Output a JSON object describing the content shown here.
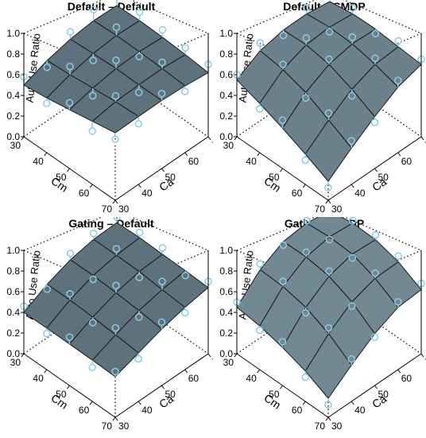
{
  "chart_data": [
    {
      "type": "surface3d",
      "title": "Default – Default",
      "xlabel": "Cm",
      "ylabel": "Ca",
      "zlabel": "Auto Use Ratio",
      "x": [
        30,
        40,
        50,
        60,
        70
      ],
      "y": [
        30,
        40,
        50,
        60,
        70
      ],
      "xlim": [
        30,
        70
      ],
      "ylim": [
        30,
        70
      ],
      "zlim": [
        0,
        1
      ],
      "xticks": [
        30,
        40,
        50,
        60,
        70
      ],
      "yticks": [
        30,
        40,
        50,
        60,
        70
      ],
      "zticks": [
        {
          "value": 0,
          "label": "0.0"
        },
        0.2,
        0.4,
        0.6,
        0.8,
        {
          "value": 1,
          "label": "1.0"
        }
      ],
      "surface_color": "#5d727c",
      "point_color": "#8ccbe6",
      "z": [
        [
          0.5,
          0.62,
          0.72,
          0.8,
          0.85
        ],
        [
          0.5,
          0.6,
          0.69,
          0.76,
          0.8
        ],
        [
          0.51,
          0.59,
          0.66,
          0.71,
          0.74
        ],
        [
          0.52,
          0.58,
          0.62,
          0.66,
          0.68
        ],
        [
          0.53,
          0.56,
          0.59,
          0.61,
          0.62
        ]
      ],
      "points": [
        [
          0.58,
          0.55,
          0.8,
          0.93,
          0.97
        ],
        [
          0.45,
          0.68,
          0.62,
          0.85,
          0.9
        ],
        [
          0.57,
          0.52,
          0.74,
          0.66,
          0.82
        ],
        [
          0.44,
          0.63,
          0.55,
          0.72,
          0.75
        ],
        [
          0.48,
          0.5,
          0.65,
          0.56,
          0.7
        ]
      ]
    },
    {
      "type": "surface3d",
      "title": "Default – SMDP",
      "xlabel": "Cm",
      "ylabel": "Ca",
      "zlabel": "Auto Use Ratio",
      "x": [
        30,
        40,
        50,
        60,
        70
      ],
      "y": [
        30,
        40,
        50,
        60,
        70
      ],
      "xlim": [
        30,
        70
      ],
      "ylim": [
        30,
        70
      ],
      "zlim": [
        0,
        1
      ],
      "xticks": [
        30,
        40,
        50,
        60,
        70
      ],
      "yticks": [
        30,
        40,
        50,
        60,
        70
      ],
      "zticks": [
        {
          "value": 0,
          "label": "0.0"
        },
        0.2,
        0.4,
        0.6,
        0.8,
        {
          "value": 1,
          "label": "1.0"
        }
      ],
      "surface_color": "#6b818b",
      "point_color": "#8ccbe6",
      "z": [
        [
          0.55,
          0.72,
          0.82,
          0.88,
          0.9
        ],
        [
          0.45,
          0.65,
          0.78,
          0.85,
          0.88
        ],
        [
          0.35,
          0.55,
          0.7,
          0.79,
          0.83
        ],
        [
          0.25,
          0.42,
          0.58,
          0.7,
          0.76
        ],
        [
          0.15,
          0.3,
          0.45,
          0.6,
          0.7
        ]
      ],
      "points": [
        [
          0.6,
          0.8,
          0.76,
          0.95,
          0.97
        ],
        [
          0.4,
          0.7,
          0.85,
          0.8,
          0.95
        ],
        [
          0.42,
          0.5,
          0.75,
          0.86,
          0.78
        ],
        [
          0.2,
          0.48,
          0.52,
          0.76,
          0.82
        ],
        [
          0.1,
          0.36,
          0.4,
          0.66,
          0.75
        ]
      ]
    },
    {
      "type": "surface3d",
      "title": "Gating – Default",
      "xlabel": "Cm",
      "ylabel": "Ca",
      "zlabel": "Auto Use Ratio",
      "x": [
        30,
        40,
        50,
        60,
        70
      ],
      "y": [
        30,
        40,
        50,
        60,
        70
      ],
      "xlim": [
        30,
        70
      ],
      "ylim": [
        30,
        70
      ],
      "zlim": [
        0,
        1
      ],
      "xticks": [
        30,
        40,
        50,
        60,
        70
      ],
      "yticks": [
        30,
        40,
        50,
        60,
        70
      ],
      "zticks": [
        {
          "value": 0,
          "label": "0.0"
        },
        0.2,
        0.4,
        0.6,
        0.8,
        {
          "value": 1,
          "label": "1.0"
        }
      ],
      "surface_color": "#5d727c",
      "point_color": "#8ccbe6",
      "z": [
        [
          0.4,
          0.55,
          0.68,
          0.78,
          0.85
        ],
        [
          0.38,
          0.52,
          0.64,
          0.73,
          0.8
        ],
        [
          0.36,
          0.48,
          0.59,
          0.68,
          0.74
        ],
        [
          0.34,
          0.44,
          0.54,
          0.62,
          0.69
        ],
        [
          0.32,
          0.4,
          0.49,
          0.57,
          0.64
        ]
      ],
      "points": [
        [
          0.46,
          0.5,
          0.75,
          0.85,
          0.92
        ],
        [
          0.33,
          0.58,
          0.6,
          0.8,
          0.86
        ],
        [
          0.42,
          0.43,
          0.66,
          0.62,
          0.81
        ],
        [
          0.28,
          0.5,
          0.48,
          0.7,
          0.64
        ],
        [
          0.36,
          0.35,
          0.55,
          0.52,
          0.7
        ]
      ]
    },
    {
      "type": "surface3d",
      "title": "Gating – SMDP",
      "xlabel": "Cm",
      "ylabel": "Ca",
      "zlabel": "Auto Use Ratio",
      "x": [
        30,
        40,
        50,
        60,
        70
      ],
      "y": [
        30,
        40,
        50,
        60,
        70
      ],
      "xlim": [
        30,
        70
      ],
      "ylim": [
        30,
        70
      ],
      "zlim": [
        0,
        1
      ],
      "xticks": [
        30,
        40,
        50,
        60,
        70
      ],
      "yticks": [
        30,
        40,
        50,
        60,
        70
      ],
      "zticks": [
        {
          "value": 0,
          "label": "0.0"
        },
        0.2,
        0.4,
        0.6,
        0.8,
        {
          "value": 1,
          "label": "1.0"
        }
      ],
      "surface_color": "#728892",
      "point_color": "#8ccbe6",
      "z": [
        [
          0.45,
          0.7,
          0.88,
          0.97,
          1.0
        ],
        [
          0.4,
          0.65,
          0.83,
          0.93,
          0.97
        ],
        [
          0.33,
          0.57,
          0.75,
          0.86,
          0.9
        ],
        [
          0.25,
          0.45,
          0.62,
          0.73,
          0.78
        ],
        [
          0.15,
          0.3,
          0.45,
          0.57,
          0.62
        ]
      ],
      "points": [
        [
          0.5,
          0.76,
          0.84,
          1.0,
          0.98
        ],
        [
          0.36,
          0.7,
          0.88,
          0.9,
          1.0
        ],
        [
          0.38,
          0.52,
          0.8,
          0.82,
          0.95
        ],
        [
          0.2,
          0.5,
          0.58,
          0.78,
          0.84
        ],
        [
          0.1,
          0.35,
          0.42,
          0.62,
          0.68
        ]
      ]
    }
  ]
}
